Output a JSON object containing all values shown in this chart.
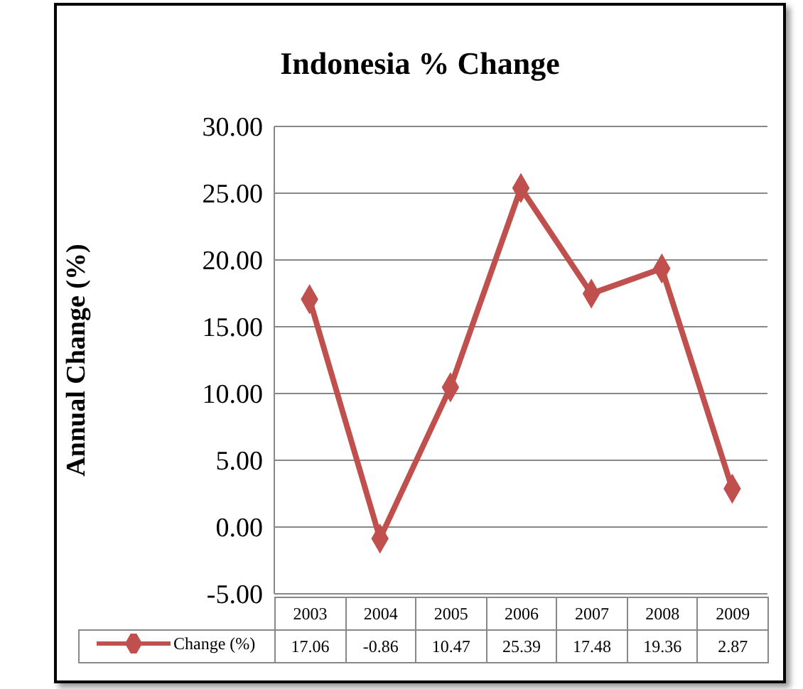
{
  "chart_data": {
    "type": "line",
    "title": "Indonesia % Change",
    "ylabel": "Annual Change (%)",
    "categories": [
      "2003",
      "2004",
      "2005",
      "2006",
      "2007",
      "2008",
      "2009"
    ],
    "series": [
      {
        "name": "Change (%)",
        "color": "#c0504d",
        "values": [
          17.06,
          -0.86,
          10.47,
          25.39,
          17.48,
          19.36,
          2.87
        ]
      }
    ],
    "ylim": [
      -5,
      30
    ],
    "yticks": [
      {
        "value": -5,
        "label": "-5.00"
      },
      {
        "value": 0,
        "label": "0.00"
      },
      {
        "value": 5,
        "label": "5.00"
      },
      {
        "value": 10,
        "label": "10.00"
      },
      {
        "value": 15,
        "label": "15.00"
      },
      {
        "value": 20,
        "label": "20.00"
      },
      {
        "value": 25,
        "label": "25.00"
      },
      {
        "value": 30,
        "label": "30.00"
      }
    ],
    "grid": "y",
    "legend": "bottom",
    "marker": "diamond",
    "line_style": "solid",
    "data_labels": true
  }
}
